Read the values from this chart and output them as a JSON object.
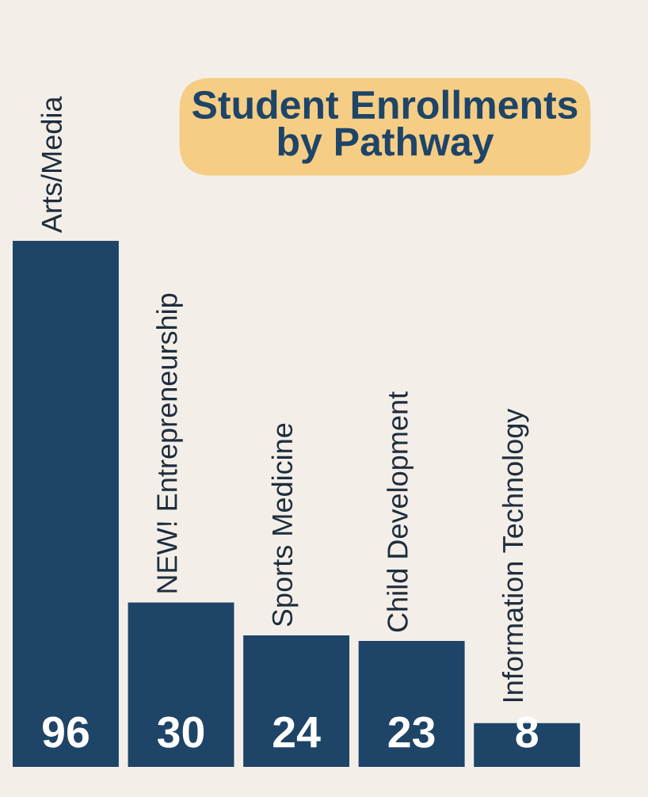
{
  "chart_data": {
    "type": "bar",
    "title": "Student Enrollments\nby Pathway",
    "categories": [
      "Arts/Media",
      "NEW! Entrepreneurship",
      "Sports Medicine",
      "Child Development",
      "Information Technology"
    ],
    "values": [
      96,
      30,
      24,
      23,
      8
    ],
    "color": "#1e4468",
    "data_labels": true
  }
}
